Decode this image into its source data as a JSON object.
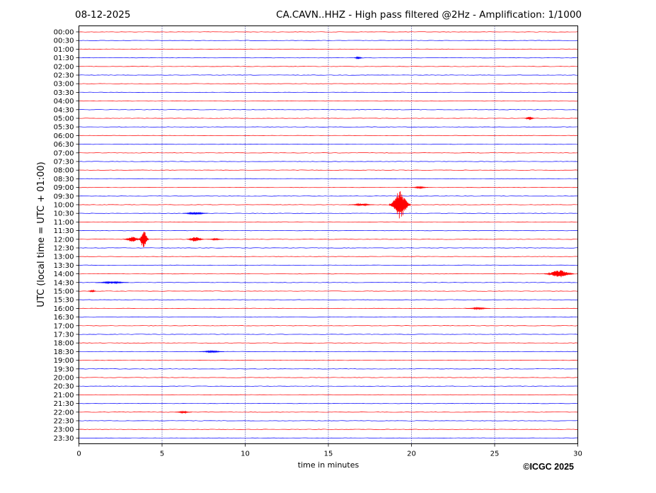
{
  "header": {
    "date": "08-12-2025",
    "title": "CA.CAVN..HHZ - High pass filtered @2Hz - Amplification: 1/1000"
  },
  "footer": {
    "copyright": "©ICGC 2025"
  },
  "chart_data": {
    "type": "line",
    "title": "CA.CAVN..HHZ - High pass filtered @2Hz - Amplification: 1/1000",
    "xlabel": "time in minutes",
    "ylabel": "UTC (local time = UTC + 01:00)",
    "xlim": [
      0,
      30
    ],
    "x_ticks": [
      0,
      5,
      10,
      15,
      20,
      25,
      30
    ],
    "x_tick_labels": [
      "0",
      "5",
      "10",
      "15",
      "20",
      "25",
      "30"
    ],
    "vertical_gridlines_at": [
      5,
      10,
      15,
      20,
      25
    ],
    "traces": [
      "00:00",
      "00:30",
      "01:00",
      "01:30",
      "02:00",
      "02:30",
      "03:00",
      "03:30",
      "04:00",
      "04:30",
      "05:00",
      "05:30",
      "06:00",
      "06:30",
      "07:00",
      "07:30",
      "08:00",
      "08:30",
      "09:00",
      "09:30",
      "10:00",
      "10:30",
      "11:00",
      "11:30",
      "12:00",
      "12:30",
      "13:00",
      "13:30",
      "14:00",
      "14:30",
      "15:00",
      "15:30",
      "16:00",
      "16:30",
      "17:00",
      "17:30",
      "18:00",
      "18:30",
      "19:00",
      "19:30",
      "20:00",
      "20:30",
      "21:00",
      "21:30",
      "22:00",
      "22:30",
      "23:00",
      "23:30"
    ],
    "trace_color_order": [
      "#ff0000",
      "#0000ff"
    ],
    "events": [
      {
        "trace": "01:30",
        "center_min": 16.8,
        "width_min": 0.5,
        "amp": 0.15,
        "color": "#0000ff"
      },
      {
        "trace": "05:00",
        "center_min": 27.1,
        "width_min": 0.6,
        "amp": 0.2,
        "color": "#ff0000"
      },
      {
        "trace": "09:00",
        "center_min": 20.5,
        "width_min": 1.0,
        "amp": 0.1,
        "color": "#ff0000"
      },
      {
        "trace": "10:00",
        "center_min": 19.3,
        "width_min": 1.3,
        "amp": 1.6,
        "color": "#ff0000"
      },
      {
        "trace": "10:00",
        "center_min": 17.0,
        "width_min": 1.5,
        "amp": 0.12,
        "color": "#ff0000"
      },
      {
        "trace": "10:30",
        "center_min": 7.0,
        "width_min": 1.5,
        "amp": 0.15,
        "color": "#0000ff"
      },
      {
        "trace": "12:00",
        "center_min": 3.9,
        "width_min": 0.6,
        "amp": 1.1,
        "color": "#ff0000"
      },
      {
        "trace": "12:00",
        "center_min": 3.2,
        "width_min": 1.0,
        "amp": 0.3,
        "color": "#ff0000"
      },
      {
        "trace": "12:00",
        "center_min": 7.0,
        "width_min": 1.0,
        "amp": 0.3,
        "color": "#ff0000"
      },
      {
        "trace": "12:00",
        "center_min": 8.2,
        "width_min": 1.0,
        "amp": 0.08,
        "color": "#ff0000"
      },
      {
        "trace": "14:00",
        "center_min": 28.9,
        "width_min": 1.8,
        "amp": 0.45,
        "color": "#ff0000"
      },
      {
        "trace": "14:30",
        "center_min": 2.0,
        "width_min": 2.0,
        "amp": 0.12,
        "color": "#0000ff"
      },
      {
        "trace": "15:00",
        "center_min": 0.8,
        "width_min": 0.5,
        "amp": 0.12,
        "color": "#ff0000"
      },
      {
        "trace": "16:00",
        "center_min": 24.0,
        "width_min": 1.5,
        "amp": 0.1,
        "color": "#ff0000"
      },
      {
        "trace": "18:30",
        "center_min": 8.0,
        "width_min": 1.5,
        "amp": 0.1,
        "color": "#0000ff"
      },
      {
        "trace": "22:00",
        "center_min": 6.3,
        "width_min": 1.0,
        "amp": 0.1,
        "color": "#ff0000"
      }
    ]
  }
}
